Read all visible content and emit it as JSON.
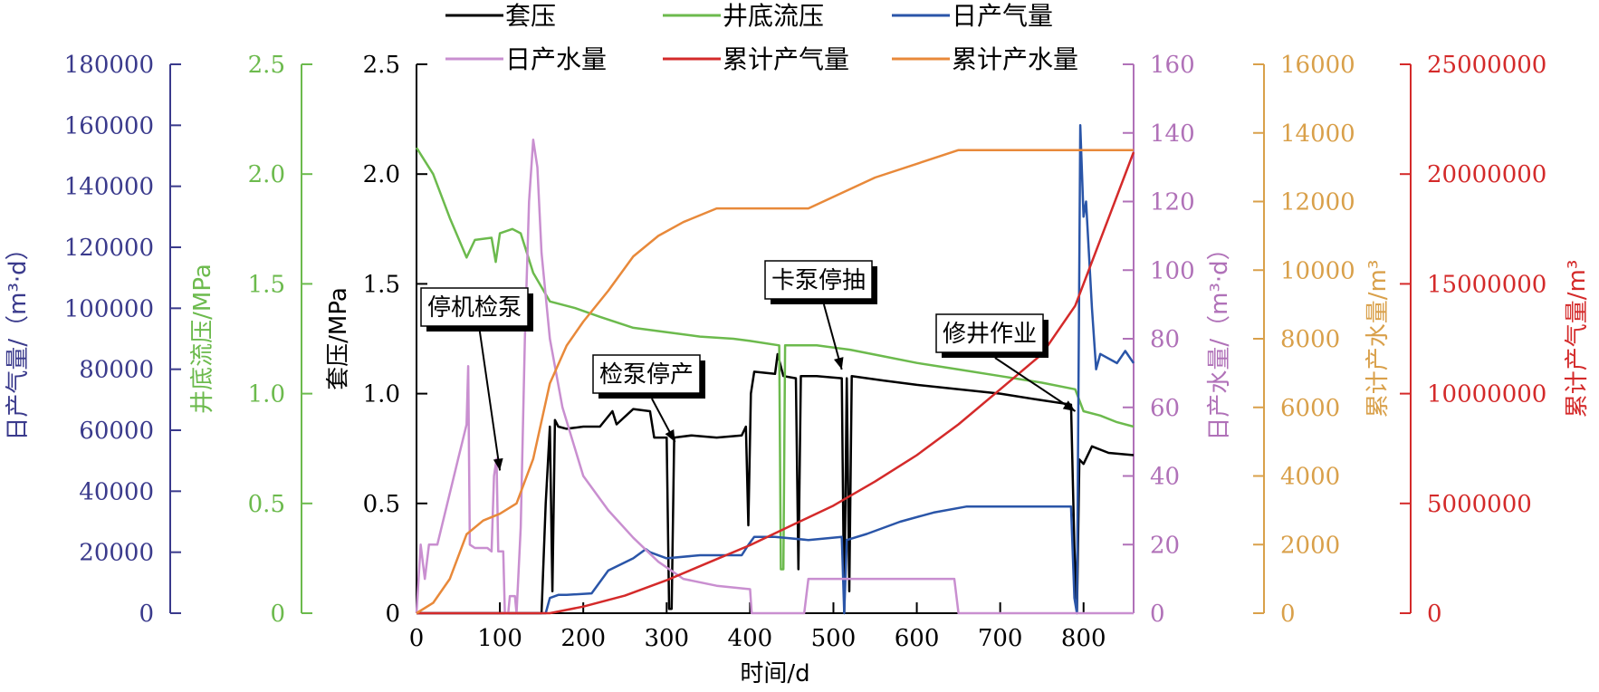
{
  "chart_data": {
    "type": "line",
    "x": {
      "label": "时间/d",
      "range": [
        0,
        860
      ],
      "ticks": [
        "0",
        "100",
        "200",
        "300",
        "400",
        "500",
        "600",
        "700",
        "800"
      ]
    },
    "axes": {
      "casing_pressure": {
        "label": "套压/MPa",
        "range": [
          0,
          2.5
        ],
        "color": "#000000",
        "ticks": [
          "0",
          "0.5",
          "1.0",
          "1.5",
          "2.0",
          "2.5"
        ]
      },
      "bhfp": {
        "label": "井底流压/MPa",
        "range": [
          0,
          2.5
        ],
        "color": "#6cba4d",
        "ticks": [
          "0",
          "0.5",
          "1.0",
          "1.5",
          "2.0",
          "2.5"
        ]
      },
      "daily_gas": {
        "label": "日产气量/（m³·d）",
        "range": [
          0,
          180000
        ],
        "color": "#3a3a8c",
        "ticks": [
          "0",
          "20000",
          "40000",
          "60000",
          "80000",
          "100000",
          "120000",
          "140000",
          "160000",
          "180000"
        ]
      },
      "daily_water": {
        "label": "日产水量/（m³·d）",
        "range": [
          0,
          160
        ],
        "color": "#b071b8",
        "ticks": [
          "0",
          "20",
          "40",
          "60",
          "80",
          "100",
          "120",
          "140",
          "160"
        ]
      },
      "cum_water": {
        "label": "累计产水量/m³",
        "range": [
          0,
          16000
        ],
        "color": "#d9a04a",
        "ticks": [
          "0",
          "2000",
          "4000",
          "6000",
          "8000",
          "10000",
          "12000",
          "14000",
          "16000"
        ]
      },
      "cum_gas": {
        "label": "累计产气量/m³",
        "range": [
          0,
          25000000
        ],
        "color": "#d42a2a",
        "ticks": [
          "0",
          "5000000",
          "10000000",
          "15000000",
          "20000000",
          "25000000"
        ]
      }
    },
    "legend": {
      "placement": "top",
      "items": [
        {
          "name": "套压",
          "color": "#000000"
        },
        {
          "name": "井底流压",
          "color": "#6cba4d"
        },
        {
          "name": "日产气量",
          "color": "#2a55a8"
        },
        {
          "name": "日产水量",
          "color": "#c98fd0"
        },
        {
          "name": "累计产气量",
          "color": "#d42a2a"
        },
        {
          "name": "累计产水量",
          "color": "#e8893a"
        }
      ]
    },
    "annotations": [
      {
        "text": "停机检泵",
        "x": 100,
        "y": 0.65
      },
      {
        "text": "检泵停产",
        "x": 310,
        "y": 0.78
      },
      {
        "text": "卡泵停抽",
        "x": 510,
        "y": 1.11
      },
      {
        "text": "修井作业",
        "x": 790,
        "y": 0.92
      }
    ],
    "series": [
      {
        "name": "套压",
        "axis": "casing_pressure",
        "color": "#000000",
        "points": [
          [
            0,
            0
          ],
          [
            150,
            0
          ],
          [
            155,
            0.5
          ],
          [
            160,
            0.85
          ],
          [
            163,
            0.1
          ],
          [
            166,
            0.88
          ],
          [
            170,
            0.85
          ],
          [
            180,
            0.84
          ],
          [
            200,
            0.85
          ],
          [
            220,
            0.85
          ],
          [
            235,
            0.92
          ],
          [
            240,
            0.86
          ],
          [
            260,
            0.93
          ],
          [
            280,
            0.92
          ],
          [
            285,
            0.8
          ],
          [
            300,
            0.8
          ],
          [
            303,
            0.02
          ],
          [
            306,
            0.02
          ],
          [
            309,
            0.8
          ],
          [
            330,
            0.81
          ],
          [
            360,
            0.8
          ],
          [
            390,
            0.81
          ],
          [
            395,
            0.85
          ],
          [
            398,
            0.4
          ],
          [
            401,
            1.0
          ],
          [
            405,
            1.1
          ],
          [
            430,
            1.09
          ],
          [
            433,
            1.18
          ],
          [
            440,
            1.08
          ],
          [
            455,
            1.07
          ],
          [
            458,
            0.2
          ],
          [
            461,
            1.08
          ],
          [
            480,
            1.08
          ],
          [
            510,
            1.07
          ],
          [
            513,
            0.0
          ],
          [
            516,
            1.07
          ],
          [
            519,
            0.1
          ],
          [
            522,
            1.08
          ],
          [
            560,
            1.06
          ],
          [
            600,
            1.04
          ],
          [
            650,
            1.02
          ],
          [
            700,
            1.0
          ],
          [
            750,
            0.97
          ],
          [
            785,
            0.95
          ],
          [
            789,
            0.3
          ],
          [
            792,
            0.0
          ],
          [
            795,
            0.7
          ],
          [
            800,
            0.68
          ],
          [
            810,
            0.76
          ],
          [
            830,
            0.73
          ],
          [
            860,
            0.72
          ]
        ]
      },
      {
        "name": "井底流压",
        "axis": "bhfp",
        "color": "#6cba4d",
        "points": [
          [
            0,
            2.12
          ],
          [
            20,
            2.0
          ],
          [
            40,
            1.8
          ],
          [
            60,
            1.62
          ],
          [
            70,
            1.7
          ],
          [
            90,
            1.71
          ],
          [
            95,
            1.6
          ],
          [
            100,
            1.73
          ],
          [
            115,
            1.75
          ],
          [
            125,
            1.73
          ],
          [
            140,
            1.55
          ],
          [
            160,
            1.42
          ],
          [
            190,
            1.39
          ],
          [
            220,
            1.35
          ],
          [
            260,
            1.3
          ],
          [
            300,
            1.28
          ],
          [
            340,
            1.26
          ],
          [
            380,
            1.25
          ],
          [
            400,
            1.24
          ],
          [
            435,
            1.22
          ],
          [
            437,
            0.2
          ],
          [
            440,
            0.2
          ],
          [
            442,
            1.22
          ],
          [
            480,
            1.22
          ],
          [
            520,
            1.2
          ],
          [
            560,
            1.17
          ],
          [
            600,
            1.14
          ],
          [
            650,
            1.11
          ],
          [
            700,
            1.08
          ],
          [
            750,
            1.05
          ],
          [
            790,
            1.02
          ],
          [
            800,
            0.92
          ],
          [
            820,
            0.9
          ],
          [
            840,
            0.87
          ],
          [
            860,
            0.85
          ]
        ]
      },
      {
        "name": "日产气量",
        "axis": "daily_gas",
        "color": "#2a55a8",
        "points": [
          [
            0,
            0
          ],
          [
            155,
            0
          ],
          [
            160,
            5000
          ],
          [
            170,
            6000
          ],
          [
            180,
            6000
          ],
          [
            210,
            6500
          ],
          [
            230,
            14000
          ],
          [
            260,
            18000
          ],
          [
            275,
            21000
          ],
          [
            280,
            20000
          ],
          [
            300,
            18000
          ],
          [
            340,
            19000
          ],
          [
            390,
            19000
          ],
          [
            397,
            22000
          ],
          [
            405,
            25000
          ],
          [
            430,
            25000
          ],
          [
            470,
            24000
          ],
          [
            510,
            25000
          ],
          [
            513,
            0
          ],
          [
            516,
            24000
          ],
          [
            540,
            26000
          ],
          [
            580,
            30000
          ],
          [
            620,
            33000
          ],
          [
            660,
            35000
          ],
          [
            700,
            35000
          ],
          [
            740,
            35000
          ],
          [
            785,
            35000
          ],
          [
            789,
            5000
          ],
          [
            792,
            0
          ],
          [
            796,
            160000
          ],
          [
            800,
            130000
          ],
          [
            803,
            135000
          ],
          [
            810,
            100000
          ],
          [
            815,
            80000
          ],
          [
            820,
            85000
          ],
          [
            840,
            82000
          ],
          [
            850,
            86000
          ],
          [
            860,
            82000
          ]
        ]
      },
      {
        "name": "日产水量",
        "axis": "daily_water",
        "color": "#c98fd0",
        "points": [
          [
            0,
            0
          ],
          [
            5,
            20
          ],
          [
            10,
            10
          ],
          [
            15,
            20
          ],
          [
            25,
            20
          ],
          [
            35,
            30
          ],
          [
            50,
            45
          ],
          [
            60,
            55
          ],
          [
            62,
            72
          ],
          [
            64,
            20
          ],
          [
            70,
            19
          ],
          [
            85,
            19
          ],
          [
            90,
            18
          ],
          [
            93,
            40
          ],
          [
            96,
            45
          ],
          [
            98,
            18
          ],
          [
            104,
            18
          ],
          [
            106,
            0
          ],
          [
            110,
            0
          ],
          [
            112,
            5
          ],
          [
            118,
            5
          ],
          [
            120,
            0
          ],
          [
            125,
            25
          ],
          [
            130,
            80
          ],
          [
            135,
            120
          ],
          [
            140,
            138
          ],
          [
            145,
            130
          ],
          [
            150,
            105
          ],
          [
            160,
            80
          ],
          [
            175,
            60
          ],
          [
            200,
            40
          ],
          [
            230,
            30
          ],
          [
            260,
            22
          ],
          [
            290,
            15
          ],
          [
            320,
            10
          ],
          [
            360,
            8
          ],
          [
            400,
            7
          ],
          [
            402,
            0
          ],
          [
            465,
            0
          ],
          [
            470,
            10
          ],
          [
            550,
            10
          ],
          [
            645,
            10
          ],
          [
            650,
            0
          ],
          [
            860,
            0
          ]
        ]
      },
      {
        "name": "累计产气量",
        "axis": "cum_gas",
        "color": "#d42a2a",
        "points": [
          [
            0,
            0
          ],
          [
            160,
            0
          ],
          [
            200,
            300000
          ],
          [
            250,
            800000
          ],
          [
            300,
            1500000
          ],
          [
            350,
            2300000
          ],
          [
            400,
            3100000
          ],
          [
            450,
            4000000
          ],
          [
            500,
            4900000
          ],
          [
            550,
            6000000
          ],
          [
            600,
            7200000
          ],
          [
            650,
            8600000
          ],
          [
            700,
            10200000
          ],
          [
            750,
            11800000
          ],
          [
            790,
            14000000
          ],
          [
            800,
            15000000
          ],
          [
            830,
            18000000
          ],
          [
            860,
            21000000
          ]
        ]
      },
      {
        "name": "累计产水量",
        "axis": "cum_water",
        "color": "#e8893a",
        "points": [
          [
            0,
            0
          ],
          [
            20,
            300
          ],
          [
            40,
            1000
          ],
          [
            60,
            2300
          ],
          [
            80,
            2700
          ],
          [
            100,
            2900
          ],
          [
            120,
            3200
          ],
          [
            140,
            4500
          ],
          [
            160,
            6700
          ],
          [
            180,
            7800
          ],
          [
            200,
            8500
          ],
          [
            230,
            9400
          ],
          [
            260,
            10400
          ],
          [
            290,
            11000
          ],
          [
            320,
            11400
          ],
          [
            360,
            11800
          ],
          [
            400,
            11800
          ],
          [
            470,
            11800
          ],
          [
            550,
            12700
          ],
          [
            650,
            13500
          ],
          [
            860,
            13500
          ]
        ]
      }
    ]
  }
}
